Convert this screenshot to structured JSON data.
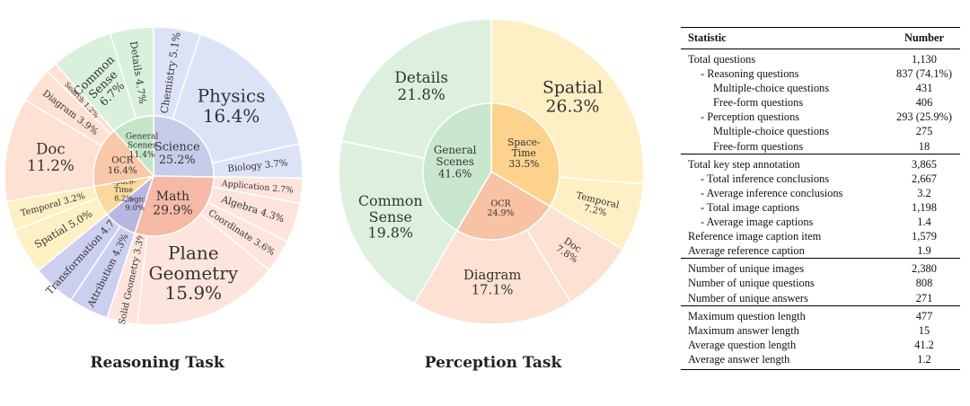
{
  "chart_data": [
    {
      "type": "pie",
      "caption": "Reasoning Task",
      "inner": [
        {
          "label": "Science",
          "value": 25.2,
          "color": "#c6cdea"
        },
        {
          "label": "Math",
          "value": 29.9,
          "color": "#f6b9a6"
        },
        {
          "label": "Logic",
          "value": 9.0,
          "color": "#b7b7e2"
        },
        {
          "label": "Space-Time",
          "value": 8.2,
          "color": "#fbd89b"
        },
        {
          "label": "OCR",
          "value": 16.4,
          "color": "#f8c8a8"
        },
        {
          "label": "General Scenes",
          "value": 11.4,
          "color": "#c3e6c7"
        }
      ],
      "outer": [
        {
          "label": "Chemistry",
          "value": 5.1,
          "parent": "Science",
          "color": "#dde3f7"
        },
        {
          "label": "Physics",
          "value": 16.4,
          "parent": "Science",
          "color": "#dde3f7"
        },
        {
          "label": "Biology",
          "value": 3.7,
          "parent": "Science",
          "color": "#dde3f7"
        },
        {
          "label": "Application",
          "value": 2.7,
          "parent": "Math",
          "color": "#fde4dc"
        },
        {
          "label": "Algebra",
          "value": 4.3,
          "parent": "Math",
          "color": "#fde4dc"
        },
        {
          "label": "Coordinate",
          "value": 3.6,
          "parent": "Math",
          "color": "#fde4dc"
        },
        {
          "label": "Plane Geometry",
          "value": 15.9,
          "parent": "Math",
          "color": "#fde4dc"
        },
        {
          "label": "Solid Geometry",
          "value": 3.3,
          "parent": "Math",
          "color": "#fde4dc"
        },
        {
          "label": "Attribution",
          "value": 4.3,
          "parent": "Logic",
          "color": "#cccff0"
        },
        {
          "label": "Transformation",
          "value": 4.7,
          "parent": "Logic",
          "color": "#cccff0"
        },
        {
          "label": "Spatial",
          "value": 5.0,
          "parent": "Space-Time",
          "color": "#fdf0c2"
        },
        {
          "label": "Temporal",
          "value": 3.2,
          "parent": "Space-Time",
          "color": "#fdf0c2"
        },
        {
          "label": "Doc",
          "value": 11.2,
          "parent": "OCR",
          "color": "#fde1d3"
        },
        {
          "label": "Diagram",
          "value": 3.9,
          "parent": "OCR",
          "color": "#fde1d3"
        },
        {
          "label": "Search",
          "value": 1.2,
          "parent": "OCR",
          "color": "#fde1d3"
        },
        {
          "label": "Common Sense",
          "value": 6.7,
          "parent": "General Scenes",
          "color": "#d9f0dc"
        },
        {
          "label": "Details",
          "value": 4.7,
          "parent": "General Scenes",
          "color": "#d9f0dc"
        }
      ]
    },
    {
      "type": "pie",
      "caption": "Perception Task",
      "inner": [
        {
          "label": "Space-Time",
          "value": 33.5,
          "color": "#fcd28c"
        },
        {
          "label": "OCR",
          "value": 24.9,
          "color": "#f8c3a4"
        },
        {
          "label": "General Scenes",
          "value": 41.6,
          "color": "#c8e7cd"
        }
      ],
      "outer": [
        {
          "label": "Spatial",
          "value": 26.3,
          "parent": "Space-Time",
          "color": "#fef0c4"
        },
        {
          "label": "Temporal",
          "value": 7.2,
          "parent": "Space-Time",
          "color": "#fef0c4"
        },
        {
          "label": "Doc",
          "value": 7.8,
          "parent": "OCR",
          "color": "#fde1d2"
        },
        {
          "label": "Diagram",
          "value": 17.1,
          "parent": "OCR",
          "color": "#fde1d2"
        },
        {
          "label": "Common Sense",
          "value": 19.8,
          "parent": "General Scenes",
          "color": "#ddf0df"
        },
        {
          "label": "Details",
          "value": 21.8,
          "parent": "General Scenes",
          "color": "#ddf0df"
        }
      ]
    },
    {
      "type": "table",
      "headers": [
        "Statistic",
        "Number"
      ],
      "groups": [
        [
          {
            "label": "Total questions",
            "value": "1,130",
            "indent": 0
          },
          {
            "label": "- Reasoning questions",
            "value": "837 (74.1%)",
            "indent": 1
          },
          {
            "label": "Multiple-choice questions",
            "value": "431",
            "indent": 2
          },
          {
            "label": "Free-form questions",
            "value": "406",
            "indent": 2
          },
          {
            "label": "- Perception questions",
            "value": "293 (25.9%)",
            "indent": 1
          },
          {
            "label": "Multiple-choice questions",
            "value": "275",
            "indent": 2
          },
          {
            "label": "Free-form questions",
            "value": "18",
            "indent": 2
          }
        ],
        [
          {
            "label": "Total key step annotation",
            "value": "3,865",
            "indent": 0
          },
          {
            "label": "- Total inference conclusions",
            "value": "2,667",
            "indent": 1
          },
          {
            "label": "- Average inference conclusions",
            "value": "3.2",
            "indent": 1
          },
          {
            "label": "- Total image captions",
            "value": "1,198",
            "indent": 1
          },
          {
            "label": "- Average image captions",
            "value": "1.4",
            "indent": 1
          },
          {
            "label": "Reference image caption item",
            "value": "1,579",
            "indent": 0
          },
          {
            "label": "Average reference caption",
            "value": "1.9",
            "indent": 0
          }
        ],
        [
          {
            "label": "Number of unique images",
            "value": "2,380",
            "indent": 0
          },
          {
            "label": "Number of unique questions",
            "value": "808",
            "indent": 0
          },
          {
            "label": "Number of unique answers",
            "value": "271",
            "indent": 0
          }
        ],
        [
          {
            "label": "Maximum question length",
            "value": "477",
            "indent": 0
          },
          {
            "label": "Maximum answer length",
            "value": "15",
            "indent": 0
          },
          {
            "label": "Average question length",
            "value": "41.2",
            "indent": 0
          },
          {
            "label": "Average answer length",
            "value": "1.2",
            "indent": 0
          }
        ]
      ]
    }
  ]
}
